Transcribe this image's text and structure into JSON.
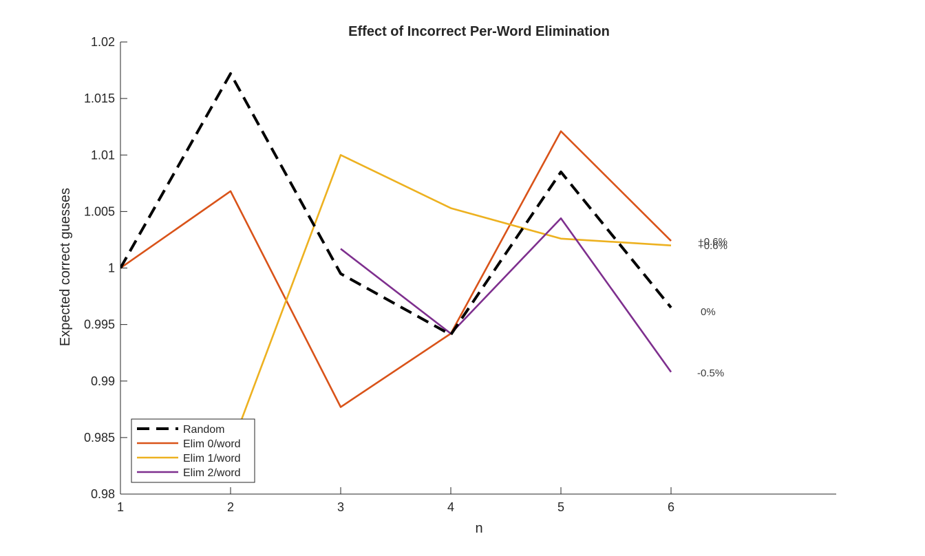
{
  "chart_data": {
    "type": "line",
    "title": "Effect of Incorrect Per-Word Elimination",
    "xlabel": "n",
    "ylabel": "Expected correct guesses",
    "xlim": [
      1,
      7.5
    ],
    "ylim": [
      0.98,
      1.02
    ],
    "xticks": [
      "1",
      "2",
      "3",
      "4",
      "5",
      "6"
    ],
    "yticks": [
      "0.98",
      "0.985",
      "0.99",
      "0.995",
      "1",
      "1.005",
      "1.01",
      "1.015",
      "1.02"
    ],
    "grid": false,
    "legend_position": "bottom-left",
    "series": [
      {
        "name": "Random",
        "color": "#000000",
        "dash": "dashed",
        "x": [
          1,
          2,
          3,
          4,
          5,
          6
        ],
        "y": [
          1.0,
          1.0172,
          0.9995,
          0.9941,
          1.0085,
          0.9965
        ]
      },
      {
        "name": "Elim 0/word",
        "color": "#D95319",
        "dash": "solid",
        "x": [
          1,
          2,
          3,
          4,
          5,
          6
        ],
        "y": [
          1.0,
          1.0068,
          0.9877,
          0.9942,
          1.0121,
          1.0024
        ]
      },
      {
        "name": "Elim 1/word",
        "color": "#EDB120",
        "dash": "solid",
        "x": [
          2,
          3,
          4,
          5,
          6
        ],
        "y": [
          0.984,
          1.01,
          1.0053,
          1.0026,
          1.002
        ]
      },
      {
        "name": "Elim 2/word",
        "color": "#7E2F8E",
        "dash": "solid",
        "x": [
          3,
          4,
          5,
          6
        ],
        "y": [
          1.0017,
          0.9942,
          1.0044,
          0.9908
        ]
      }
    ],
    "end_labels": [
      "+0.6%",
      "+0.6%",
      "0%",
      "-0.5%"
    ]
  }
}
